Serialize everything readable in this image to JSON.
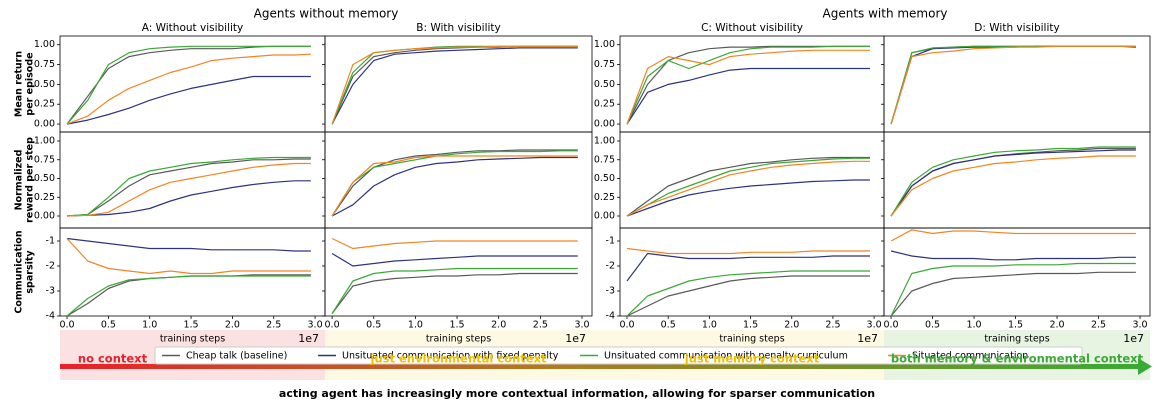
{
  "chart_data": {
    "type": "line",
    "group_titles": [
      "Agents without memory",
      "Agents with memory"
    ],
    "panel_titles": [
      "A: Without visibility",
      "B: With visibility",
      "C: Without visibility",
      "D: With visibility"
    ],
    "x": [
      0,
      0.25,
      0.5,
      0.75,
      1.0,
      1.25,
      1.5,
      1.75,
      2.0,
      2.25,
      2.5,
      2.75,
      2.95
    ],
    "xlim": [
      -0.085,
      3.12
    ],
    "xticks": [
      {
        "value": 0,
        "label": "0.0"
      },
      {
        "value": 0.5,
        "label": "0.5"
      },
      {
        "value": 1,
        "label": "1.0"
      },
      {
        "value": 1.5,
        "label": "1.5"
      },
      {
        "value": 2,
        "label": "2.0"
      },
      {
        "value": 2.5,
        "label": "2.5"
      },
      {
        "value": 3,
        "label": "3.0"
      }
    ],
    "xlabel": "training steps",
    "x_multiplier": "1e7",
    "series": [
      {
        "name": "Cheap talk (baseline)",
        "color": "#5a5a5a"
      },
      {
        "name": "Unsituated communication with fixed penalty",
        "color": "#2e3380"
      },
      {
        "name": "Unsituated communication with penalty curriculum",
        "color": "#3aa935"
      },
      {
        "name": "Situated communication",
        "color": "#f28522"
      }
    ],
    "rows": [
      {
        "ylabel": [
          "Mean return",
          "per episode"
        ],
        "ylim": [
          -0.1,
          1.11
        ],
        "yticks": [
          {
            "value": 0,
            "label": "0.00"
          },
          {
            "value": 0.25,
            "label": "0.25"
          },
          {
            "value": 0.5,
            "label": "0.50"
          },
          {
            "value": 0.75,
            "label": "0.75"
          },
          {
            "value": 1,
            "label": "1.00"
          }
        ],
        "panels": [
          [
            [
              0,
              0.35,
              0.7,
              0.85,
              0.9,
              0.93,
              0.95,
              0.95,
              0.95,
              0.97,
              0.98,
              0.98,
              0.98
            ],
            [
              0,
              0.05,
              0.12,
              0.2,
              0.3,
              0.38,
              0.45,
              0.5,
              0.55,
              0.6,
              0.6,
              0.6,
              0.6
            ],
            [
              0,
              0.3,
              0.75,
              0.9,
              0.95,
              0.97,
              0.98,
              0.98,
              0.98,
              0.98,
              0.98,
              0.98,
              0.98
            ],
            [
              0,
              0.1,
              0.3,
              0.45,
              0.55,
              0.65,
              0.72,
              0.8,
              0.83,
              0.85,
              0.87,
              0.87,
              0.88
            ]
          ],
          [
            [
              0,
              0.6,
              0.85,
              0.9,
              0.93,
              0.95,
              0.96,
              0.97,
              0.97,
              0.98,
              0.98,
              0.98,
              0.98
            ],
            [
              0,
              0.5,
              0.8,
              0.88,
              0.9,
              0.92,
              0.93,
              0.94,
              0.95,
              0.96,
              0.96,
              0.96,
              0.96
            ],
            [
              0,
              0.65,
              0.9,
              0.93,
              0.95,
              0.97,
              0.98,
              0.98,
              0.98,
              0.98,
              0.98,
              0.98,
              0.98
            ],
            [
              0,
              0.75,
              0.9,
              0.93,
              0.95,
              0.96,
              0.97,
              0.97,
              0.98,
              0.98,
              0.98,
              0.98,
              0.98
            ]
          ],
          [
            [
              0,
              0.5,
              0.8,
              0.9,
              0.95,
              0.97,
              0.97,
              0.98,
              0.98,
              0.98,
              0.98,
              0.98,
              0.98
            ],
            [
              0,
              0.4,
              0.5,
              0.55,
              0.62,
              0.68,
              0.7,
              0.7,
              0.7,
              0.7,
              0.7,
              0.7,
              0.7
            ],
            [
              0,
              0.6,
              0.8,
              0.7,
              0.8,
              0.9,
              0.95,
              0.97,
              0.97,
              0.97,
              0.98,
              0.98,
              0.98
            ],
            [
              0,
              0.7,
              0.85,
              0.8,
              0.75,
              0.85,
              0.88,
              0.9,
              0.92,
              0.93,
              0.93,
              0.93,
              0.93
            ]
          ],
          [
            [
              0,
              0.9,
              0.95,
              0.97,
              0.98,
              0.98,
              0.98,
              0.98,
              0.98,
              0.98,
              0.98,
              0.98,
              0.98
            ],
            [
              0,
              0.85,
              0.95,
              0.96,
              0.97,
              0.97,
              0.97,
              0.98,
              0.98,
              0.98,
              0.98,
              0.98,
              0.97
            ],
            [
              0,
              0.9,
              0.96,
              0.97,
              0.98,
              0.98,
              0.98,
              0.98,
              0.98,
              0.98,
              0.98,
              0.98,
              0.98
            ],
            [
              0,
              0.85,
              0.9,
              0.92,
              0.95,
              0.96,
              0.97,
              0.97,
              0.98,
              0.98,
              0.98,
              0.98,
              0.98
            ]
          ]
        ]
      },
      {
        "ylabel": [
          "Normalized",
          "reward per step"
        ],
        "ylim": [
          -0.16,
          1.12
        ],
        "yticks": [
          {
            "value": 0,
            "label": "0.00"
          },
          {
            "value": 0.25,
            "label": "0.25"
          },
          {
            "value": 0.5,
            "label": "0.50"
          },
          {
            "value": 0.75,
            "label": "0.75"
          },
          {
            "value": 1,
            "label": "1.00"
          }
        ],
        "panels": [
          [
            [
              0,
              0.02,
              0.2,
              0.4,
              0.55,
              0.6,
              0.65,
              0.7,
              0.72,
              0.75,
              0.75,
              0.76,
              0.76
            ],
            [
              0,
              0.01,
              0.02,
              0.05,
              0.1,
              0.2,
              0.28,
              0.33,
              0.38,
              0.42,
              0.45,
              0.47,
              0.47
            ],
            [
              0,
              0.02,
              0.25,
              0.5,
              0.6,
              0.65,
              0.7,
              0.72,
              0.75,
              0.77,
              0.78,
              0.78,
              0.78
            ],
            [
              0,
              0.01,
              0.05,
              0.2,
              0.35,
              0.45,
              0.5,
              0.55,
              0.6,
              0.65,
              0.68,
              0.7,
              0.7
            ]
          ],
          [
            [
              0,
              0.4,
              0.65,
              0.75,
              0.8,
              0.82,
              0.85,
              0.87,
              0.87,
              0.88,
              0.88,
              0.88,
              0.88
            ],
            [
              0,
              0.15,
              0.4,
              0.55,
              0.65,
              0.7,
              0.72,
              0.75,
              0.76,
              0.77,
              0.78,
              0.78,
              0.78
            ],
            [
              0,
              0.45,
              0.65,
              0.7,
              0.75,
              0.8,
              0.83,
              0.85,
              0.86,
              0.86,
              0.86,
              0.87,
              0.87
            ],
            [
              0,
              0.45,
              0.7,
              0.72,
              0.78,
              0.8,
              0.8,
              0.8,
              0.8,
              0.8,
              0.8,
              0.8,
              0.8
            ]
          ],
          [
            [
              0,
              0.2,
              0.4,
              0.5,
              0.6,
              0.65,
              0.7,
              0.72,
              0.75,
              0.77,
              0.78,
              0.78,
              0.78
            ],
            [
              0,
              0.1,
              0.2,
              0.28,
              0.33,
              0.37,
              0.4,
              0.42,
              0.44,
              0.46,
              0.47,
              0.48,
              0.48
            ],
            [
              0,
              0.15,
              0.3,
              0.4,
              0.5,
              0.6,
              0.65,
              0.7,
              0.72,
              0.74,
              0.76,
              0.77,
              0.77
            ],
            [
              0,
              0.15,
              0.25,
              0.35,
              0.45,
              0.55,
              0.6,
              0.65,
              0.68,
              0.7,
              0.72,
              0.73,
              0.73
            ]
          ],
          [
            [
              0,
              0.4,
              0.6,
              0.7,
              0.75,
              0.8,
              0.83,
              0.85,
              0.87,
              0.88,
              0.9,
              0.9,
              0.9
            ],
            [
              0,
              0.4,
              0.6,
              0.7,
              0.75,
              0.8,
              0.82,
              0.84,
              0.85,
              0.86,
              0.87,
              0.88,
              0.88
            ],
            [
              0,
              0.45,
              0.65,
              0.75,
              0.8,
              0.85,
              0.87,
              0.88,
              0.9,
              0.9,
              0.92,
              0.92,
              0.92
            ],
            [
              0,
              0.35,
              0.5,
              0.6,
              0.65,
              0.7,
              0.72,
              0.75,
              0.77,
              0.78,
              0.8,
              0.8,
              0.8
            ]
          ]
        ]
      },
      {
        "ylabel": [
          "Communication",
          "sparsity"
        ],
        "ylim": [
          -4,
          -0.48
        ],
        "yticks": [
          -4,
          -3,
          -2,
          -1
        ],
        "panels": [
          [
            [
              -4,
              -3.5,
              -2.9,
              -2.6,
              -2.5,
              -2.45,
              -2.4,
              -2.4,
              -2.4,
              -2.35,
              -2.35,
              -2.35,
              -2.35
            ],
            [
              -0.9,
              -1.0,
              -1.1,
              -1.2,
              -1.3,
              -1.3,
              -1.3,
              -1.35,
              -1.35,
              -1.35,
              -1.35,
              -1.4,
              -1.4
            ],
            [
              -4,
              -3.3,
              -2.8,
              -2.55,
              -2.5,
              -2.45,
              -2.4,
              -2.4,
              -2.4,
              -2.4,
              -2.4,
              -2.4,
              -2.4
            ],
            [
              -0.9,
              -1.8,
              -2.1,
              -2.2,
              -2.3,
              -2.2,
              -2.3,
              -2.3,
              -2.2,
              -2.2,
              -2.2,
              -2.2,
              -2.2
            ]
          ],
          [
            [
              -3.9,
              -2.8,
              -2.6,
              -2.5,
              -2.45,
              -2.4,
              -2.4,
              -2.35,
              -2.35,
              -2.3,
              -2.3,
              -2.3,
              -2.3
            ],
            [
              -1.5,
              -2.0,
              -1.9,
              -1.8,
              -1.75,
              -1.7,
              -1.65,
              -1.6,
              -1.6,
              -1.6,
              -1.6,
              -1.6,
              -1.6
            ],
            [
              -3.9,
              -2.6,
              -2.3,
              -2.2,
              -2.2,
              -2.15,
              -2.1,
              -2.1,
              -2.1,
              -2.1,
              -2.1,
              -2.1,
              -2.1
            ],
            [
              -0.9,
              -1.3,
              -1.2,
              -1.1,
              -1.05,
              -1.0,
              -1.0,
              -1.0,
              -1.0,
              -1.0,
              -1.0,
              -1.0,
              -1.0
            ]
          ],
          [
            [
              -4,
              -3.6,
              -3.2,
              -3.0,
              -2.8,
              -2.6,
              -2.5,
              -2.45,
              -2.4,
              -2.4,
              -2.4,
              -2.4,
              -2.4
            ],
            [
              -2.6,
              -1.5,
              -1.6,
              -1.7,
              -1.7,
              -1.7,
              -1.65,
              -1.65,
              -1.65,
              -1.65,
              -1.6,
              -1.6,
              -1.6
            ],
            [
              -4,
              -3.2,
              -2.9,
              -2.6,
              -2.45,
              -2.35,
              -2.3,
              -2.25,
              -2.2,
              -2.2,
              -2.2,
              -2.2,
              -2.2
            ],
            [
              -1.3,
              -1.4,
              -1.5,
              -1.5,
              -1.5,
              -1.5,
              -1.45,
              -1.45,
              -1.45,
              -1.4,
              -1.4,
              -1.4,
              -1.4
            ]
          ],
          [
            [
              -4,
              -3.0,
              -2.7,
              -2.5,
              -2.45,
              -2.4,
              -2.35,
              -2.3,
              -2.3,
              -2.3,
              -2.25,
              -2.25,
              -2.25
            ],
            [
              -1.4,
              -1.6,
              -1.7,
              -1.7,
              -1.7,
              -1.75,
              -1.75,
              -1.7,
              -1.7,
              -1.7,
              -1.7,
              -1.65,
              -1.65
            ],
            [
              -4,
              -2.3,
              -2.1,
              -2.0,
              -2.0,
              -2.0,
              -1.95,
              -1.95,
              -1.95,
              -1.9,
              -1.9,
              -1.9,
              -1.9
            ],
            [
              -1.0,
              -0.55,
              -0.7,
              -0.6,
              -0.6,
              -0.65,
              -0.7,
              -0.7,
              -0.7,
              -0.7,
              -0.7,
              -0.7,
              -0.7
            ]
          ]
        ]
      }
    ],
    "contexts": [
      {
        "label": "no context",
        "color": "#e8202a"
      },
      {
        "label": "just environmental context",
        "color": "#f2c200"
      },
      {
        "label": "just memory context",
        "color": "#f2c200"
      },
      {
        "label": "both memory & environmental context",
        "color": "#3aa935"
      }
    ],
    "caption": "acting agent has increasingly more contextual information, allowing for sparser communication"
  }
}
